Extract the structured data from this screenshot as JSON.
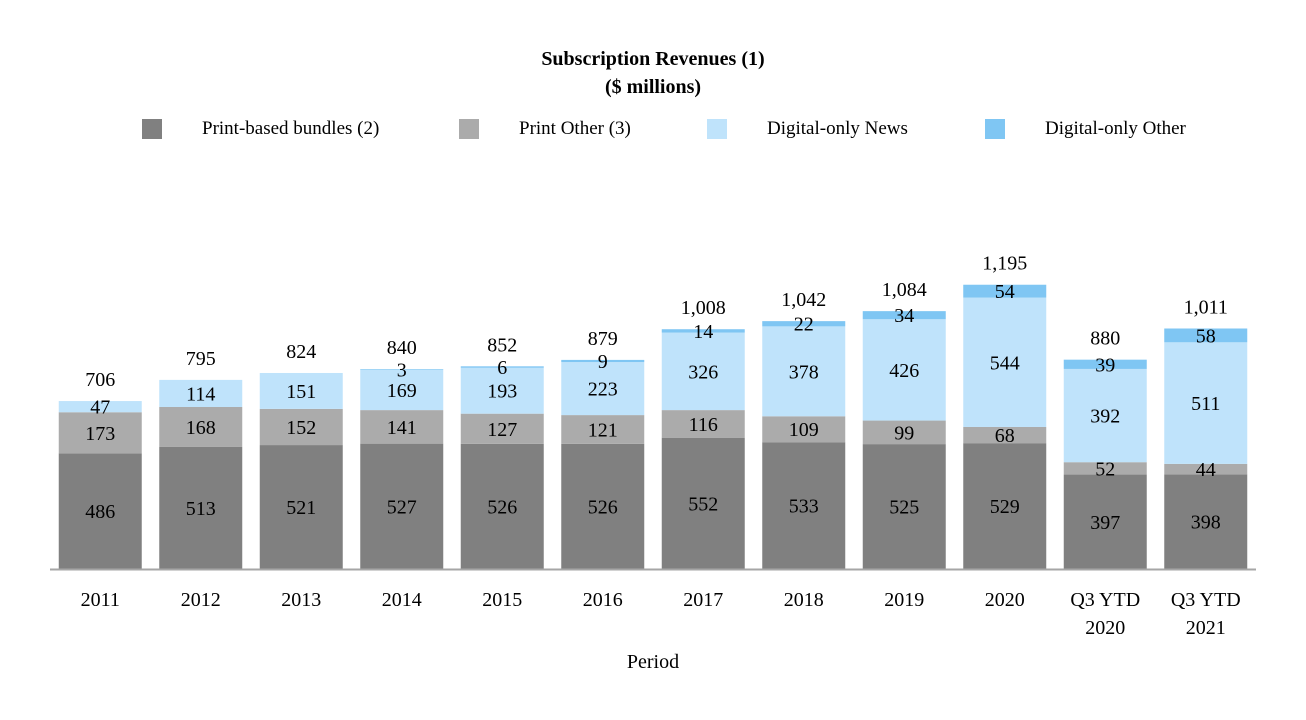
{
  "chart_data": {
    "type": "bar",
    "stacked": true,
    "title": "Subscription Revenues (1)",
    "subtitle": "($ millions)",
    "xlabel": "Period",
    "ylabel": "",
    "ylim": [
      0,
      1320
    ],
    "legend_position": "top",
    "categories": [
      [
        "2011"
      ],
      [
        "2012"
      ],
      [
        "2013"
      ],
      [
        "2014"
      ],
      [
        "2015"
      ],
      [
        "2016"
      ],
      [
        "2017"
      ],
      [
        "2018"
      ],
      [
        "2019"
      ],
      [
        "2020"
      ],
      [
        "Q3 YTD",
        "2020"
      ],
      [
        "Q3 YTD",
        "2021"
      ]
    ],
    "series": [
      {
        "name": "Print-based bundles (2)",
        "color": "#808080",
        "values": [
          486,
          513,
          521,
          527,
          526,
          526,
          552,
          533,
          525,
          529,
          397,
          398
        ]
      },
      {
        "name": "Print Other (3)",
        "color": "#ababab",
        "values": [
          173,
          168,
          152,
          141,
          127,
          121,
          116,
          109,
          99,
          68,
          52,
          44
        ]
      },
      {
        "name": "Digital-only News",
        "color": "#bfe3fb",
        "values": [
          47,
          114,
          151,
          169,
          193,
          223,
          326,
          378,
          426,
          544,
          392,
          511
        ]
      },
      {
        "name": "Digital-only Other",
        "color": "#7fc6f3",
        "values": [
          null,
          null,
          null,
          3,
          6,
          9,
          14,
          22,
          34,
          54,
          39,
          58
        ]
      }
    ],
    "totals": [
      "706",
      "795",
      "824",
      "840",
      "852",
      "879",
      "1,008",
      "1,042",
      "1,084",
      "1,195",
      "880",
      "1,011"
    ]
  }
}
